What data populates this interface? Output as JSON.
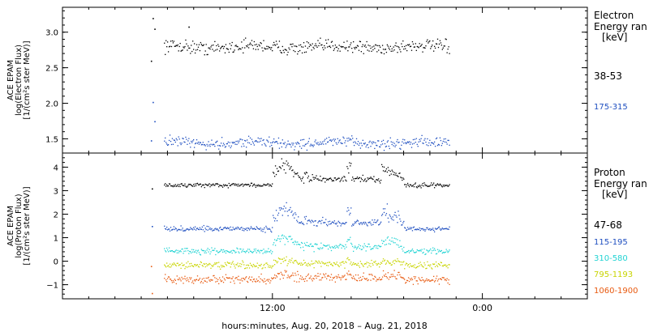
{
  "chart_data": [
    {
      "type": "scatter",
      "panel": "electron",
      "ylabel": [
        "ACE EPAM",
        "log(Electron Flux)",
        "[1/(cm²s ster MeV)]"
      ],
      "ylim": [
        1.3,
        3.35
      ],
      "yticks": [
        1.5,
        2.0,
        2.5,
        3.0
      ],
      "ytick_labels": [
        "1.5",
        "2.0",
        "2.5",
        "3.0"
      ],
      "legend_title": [
        "Electron",
        "Energy ran",
        "[keV]"
      ],
      "series": [
        {
          "name": "38-53",
          "color": "#000000",
          "base": 2.8,
          "noise": 0.05,
          "points": [
            [
              5.05,
              2.6
            ],
            [
              5.15,
              3.2
            ],
            [
              5.25,
              3.05
            ],
            [
              7.2,
              3.08
            ]
          ]
        },
        {
          "name": "175-315",
          "color": "#1f4fc0",
          "base": 1.45,
          "noise": 0.04,
          "points": [
            [
              5.05,
              1.48
            ],
            [
              5.15,
              2.02
            ],
            [
              5.25,
              1.75
            ]
          ]
        }
      ]
    },
    {
      "type": "scatter",
      "panel": "proton",
      "ylabel": [
        "ACE EPAM",
        "log(Proton Flux)",
        "[1/(cm²s ster MeV)]"
      ],
      "ylim": [
        -1.6,
        4.6
      ],
      "yticks": [
        -1,
        0,
        1,
        2,
        3,
        4
      ],
      "ytick_labels": [
        "−1",
        "0",
        "1",
        "2",
        "3",
        "4"
      ],
      "legend_title": [
        "Proton",
        "Energy ran",
        "[keV]"
      ],
      "series": [
        {
          "name": "47-68",
          "color": "#000000",
          "base": 3.25,
          "noise": 0.05,
          "points": [
            [
              5.1,
              3.1
            ]
          ]
        },
        {
          "name": "115-195",
          "color": "#1f4fc0",
          "base": 1.4,
          "noise": 0.06,
          "points": [
            [
              5.1,
              1.5
            ]
          ]
        },
        {
          "name": "310-580",
          "color": "#22d3d3",
          "base": 0.45,
          "noise": 0.07,
          "points": []
        },
        {
          "name": "795-1193",
          "color": "#c8d400",
          "base": -0.15,
          "noise": 0.08,
          "points": []
        },
        {
          "name": "1060-1900",
          "color": "#e85a10",
          "base": -0.75,
          "noise": 0.1,
          "points": [
            [
              5.05,
              -0.2
            ],
            [
              5.1,
              -1.35
            ]
          ]
        }
      ]
    }
  ],
  "time_axis": {
    "xlabel": "hours:minutes, Aug. 20, 2018 – Aug. 21, 2018",
    "xlim": [
      0,
      30
    ],
    "data_start": 5.8,
    "data_end": 22.1,
    "major_ticks": [
      12,
      24
    ],
    "major_labels": [
      "12:00",
      "0:00"
    ],
    "minor_every": 1.5
  }
}
